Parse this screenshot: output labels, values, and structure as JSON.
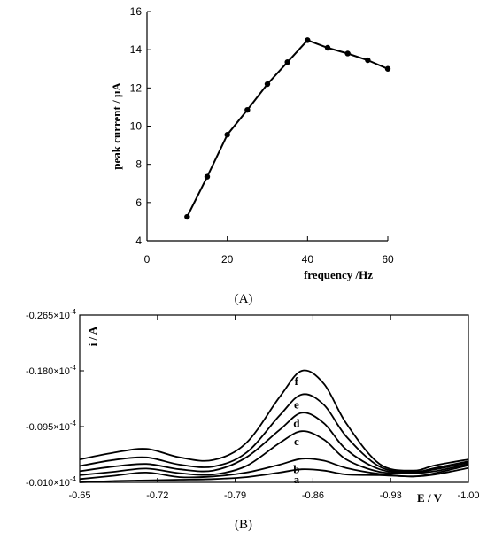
{
  "chart_data": [
    {
      "type": "line",
      "panel_label": "(A)",
      "title": "",
      "xlabel": "frequency /Hz",
      "ylabel": "peak current / μA",
      "xlim": [
        0,
        60
      ],
      "ylim": [
        4,
        16
      ],
      "xticks": [
        "0",
        "20",
        "40",
        "60"
      ],
      "yticks": [
        "4",
        "6",
        "8",
        "10",
        "12",
        "14",
        "16"
      ],
      "grid": false,
      "legend": "none",
      "series": [
        {
          "x": [
            10,
            15,
            20,
            25,
            30,
            35,
            40,
            45,
            50,
            55,
            60
          ],
          "y": [
            5.25,
            7.35,
            9.55,
            10.85,
            12.2,
            13.35,
            14.5,
            14.1,
            13.8,
            13.45,
            13.0
          ]
        }
      ]
    },
    {
      "type": "line",
      "panel_label": "(B)",
      "title": "",
      "xlabel": "E / V",
      "ylabel": "i / A",
      "xlim": [
        -0.65,
        -1.0
      ],
      "ylim": [
        -0.01,
        -0.265
      ],
      "xticks": [
        "-0.65",
        "-0.72",
        "-0.79",
        "-0.86",
        "-0.93",
        "-1.00"
      ],
      "yticks": [
        {
          "mantissa": "-0.010",
          "exponent": "-4"
        },
        {
          "mantissa": "-0.095",
          "exponent": "-4"
        },
        {
          "mantissa": "-0.180",
          "exponent": "-4"
        },
        {
          "mantissa": "-0.265",
          "exponent": "-4"
        }
      ],
      "tick_times": "×10",
      "grid": false,
      "legend": "none",
      "series": [
        {
          "name": "a",
          "x": [
            -0.65,
            -0.68,
            -0.71,
            -0.74,
            -0.77,
            -0.8,
            -0.83,
            -0.85,
            -0.87,
            -0.89,
            -0.92,
            -0.95,
            -0.97,
            -1.0
          ],
          "y": [
            -0.01,
            -0.012,
            -0.013,
            -0.014,
            -0.015,
            -0.018,
            -0.025,
            -0.03,
            -0.028,
            -0.022,
            -0.021,
            -0.019,
            -0.022,
            -0.032
          ]
        },
        {
          "name": "b",
          "x": [
            -0.65,
            -0.68,
            -0.71,
            -0.74,
            -0.77,
            -0.8,
            -0.83,
            -0.85,
            -0.87,
            -0.89,
            -0.92,
            -0.95,
            -0.97,
            -1.0
          ],
          "y": [
            -0.015,
            -0.02,
            -0.025,
            -0.018,
            -0.019,
            -0.025,
            -0.037,
            -0.046,
            -0.043,
            -0.032,
            -0.023,
            -0.019,
            -0.024,
            -0.036
          ]
        },
        {
          "name": "c",
          "x": [
            -0.65,
            -0.68,
            -0.71,
            -0.74,
            -0.77,
            -0.8,
            -0.83,
            -0.85,
            -0.87,
            -0.89,
            -0.92,
            -0.95,
            -0.97,
            -1.0
          ],
          "y": [
            -0.021,
            -0.026,
            -0.031,
            -0.024,
            -0.022,
            -0.035,
            -0.07,
            -0.088,
            -0.075,
            -0.045,
            -0.026,
            -0.024,
            -0.027,
            -0.038
          ]
        },
        {
          "name": "d",
          "x": [
            -0.65,
            -0.68,
            -0.71,
            -0.74,
            -0.77,
            -0.8,
            -0.83,
            -0.85,
            -0.87,
            -0.89,
            -0.92,
            -0.95,
            -0.97,
            -1.0
          ],
          "y": [
            -0.027,
            -0.034,
            -0.038,
            -0.03,
            -0.028,
            -0.048,
            -0.09,
            -0.116,
            -0.1,
            -0.06,
            -0.03,
            -0.025,
            -0.03,
            -0.04
          ]
        },
        {
          "name": "e",
          "x": [
            -0.65,
            -0.68,
            -0.71,
            -0.74,
            -0.77,
            -0.8,
            -0.83,
            -0.85,
            -0.87,
            -0.89,
            -0.92,
            -0.95,
            -0.97,
            -1.0
          ],
          "y": [
            -0.035,
            -0.044,
            -0.048,
            -0.037,
            -0.034,
            -0.055,
            -0.112,
            -0.144,
            -0.128,
            -0.08,
            -0.034,
            -0.026,
            -0.032,
            -0.042
          ]
        },
        {
          "name": "f",
          "x": [
            -0.65,
            -0.68,
            -0.71,
            -0.74,
            -0.77,
            -0.8,
            -0.83,
            -0.85,
            -0.87,
            -0.89,
            -0.92,
            -0.95,
            -0.97,
            -1.0
          ],
          "y": [
            -0.045,
            -0.055,
            -0.061,
            -0.048,
            -0.044,
            -0.07,
            -0.14,
            -0.18,
            -0.16,
            -0.1,
            -0.038,
            -0.028,
            -0.036,
            -0.045
          ]
        }
      ]
    }
  ]
}
